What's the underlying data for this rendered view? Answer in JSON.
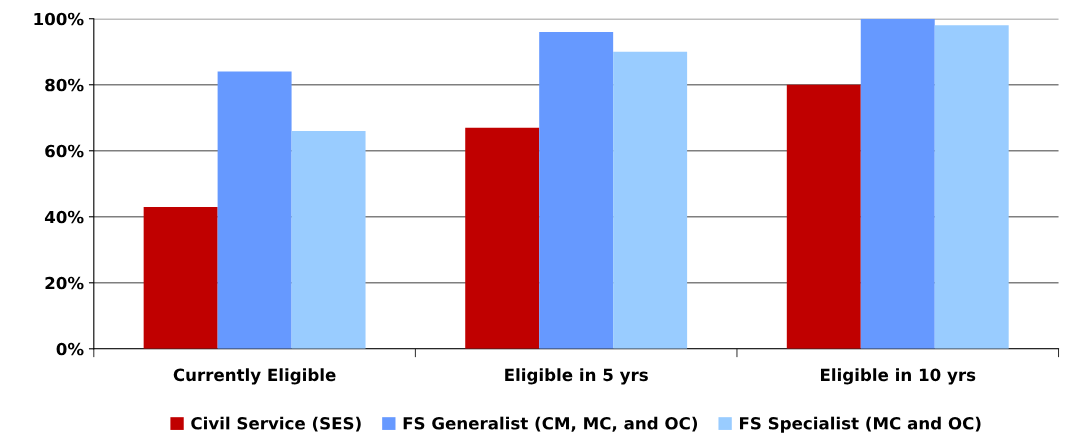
{
  "chart_data": {
    "type": "bar",
    "categories": [
      "Currently Eligible",
      "Eligible in 5 yrs",
      "Eligible in 10 yrs"
    ],
    "series": [
      {
        "name": "Civil Service (SES)",
        "color": "#c00000",
        "values": [
          43,
          67,
          80
        ]
      },
      {
        "name": "FS Generalist (CM, MC, and OC)",
        "color": "#6699ff",
        "values": [
          84,
          96,
          100
        ]
      },
      {
        "name": "FS Specialist (MC and OC)",
        "color": "#99ccff",
        "values": [
          66,
          90,
          98
        ]
      }
    ],
    "ylim": [
      0,
      100
    ],
    "yticks": [
      {
        "value": 0,
        "label": "0%"
      },
      {
        "value": 20,
        "label": "20%"
      },
      {
        "value": 40,
        "label": "40%"
      },
      {
        "value": 60,
        "label": "60%"
      },
      {
        "value": 80,
        "label": "80%"
      },
      {
        "value": 100,
        "label": "100%"
      }
    ],
    "grid": "y",
    "legend": "bottom"
  }
}
